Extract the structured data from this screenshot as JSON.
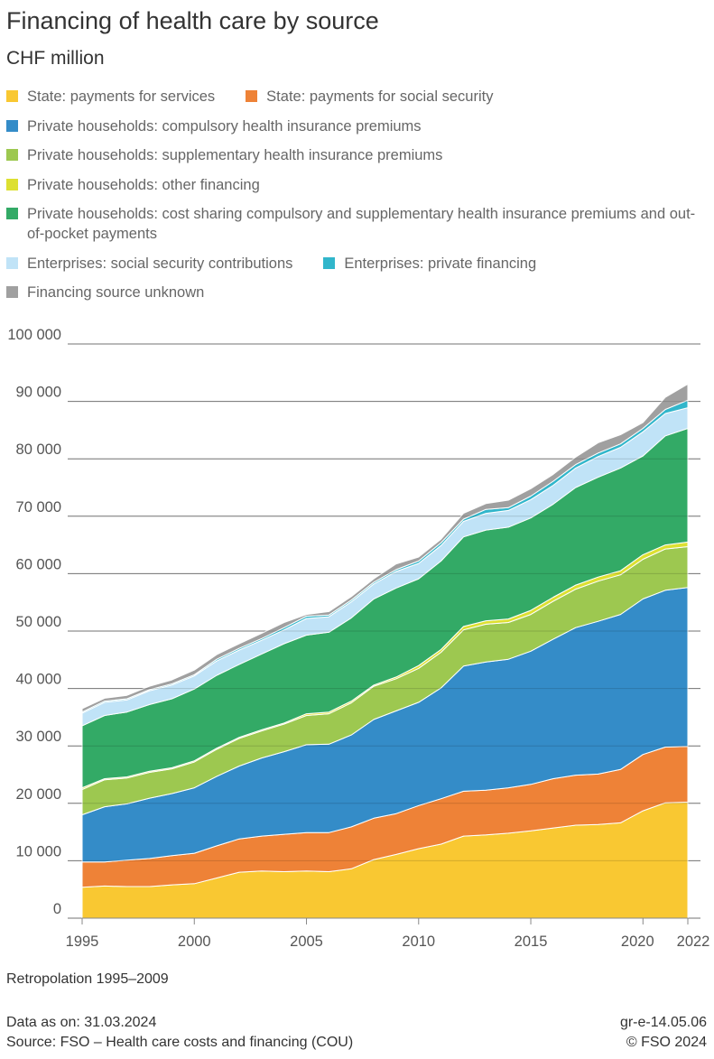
{
  "title": "Financing of health care by source",
  "subtitle": "CHF million",
  "note": "Retropolation 1995–2009",
  "footer": {
    "data_as_on": "Data as on: 31.03.2024",
    "source": "Source: FSO – Health care costs and financing (COU)",
    "code": "gr-e-14.05.06",
    "copyright": "© FSO 2024"
  },
  "chart_data": {
    "type": "area",
    "stacked": true,
    "title": "Financing of health care by source",
    "ylabel": "CHF million",
    "ylim": [
      0,
      100000
    ],
    "grid": true,
    "legend_position": "top",
    "yticks": [
      0,
      10000,
      20000,
      30000,
      40000,
      50000,
      60000,
      70000,
      80000,
      90000,
      100000
    ],
    "ytick_labels": [
      "0",
      "10 000",
      "20 000",
      "30 000",
      "40 000",
      "50 000",
      "60 000",
      "70 000",
      "80 000",
      "90 000",
      "100 000"
    ],
    "xticks": [
      1995,
      2000,
      2005,
      2010,
      2015,
      2020,
      2022
    ],
    "xtick_labels": [
      "1995",
      "2000",
      "2005",
      "2010",
      "2015",
      "2020",
      "2022"
    ],
    "x": [
      1995,
      1996,
      1997,
      1998,
      1999,
      2000,
      2001,
      2002,
      2003,
      2004,
      2005,
      2006,
      2007,
      2008,
      2009,
      2010,
      2011,
      2012,
      2013,
      2014,
      2015,
      2016,
      2017,
      2018,
      2019,
      2020,
      2021,
      2022
    ],
    "series": [
      {
        "name": "State: payments for services",
        "color": "#f9c832",
        "values": [
          5400,
          5600,
          5500,
          5500,
          5800,
          6000,
          7000,
          8000,
          8200,
          8100,
          8200,
          8100,
          8600,
          10200,
          11100,
          12100,
          12900,
          14300,
          14500,
          14800,
          15200,
          15700,
          16200,
          16300,
          16600,
          18700,
          20100,
          20200
        ]
      },
      {
        "name": "State: payments for social security",
        "color": "#ee8237",
        "values": [
          4400,
          4200,
          4600,
          4900,
          5100,
          5300,
          5600,
          5800,
          6100,
          6500,
          6700,
          6800,
          7300,
          7200,
          7100,
          7500,
          7900,
          7800,
          7800,
          7900,
          8100,
          8600,
          8700,
          8800,
          9300,
          9800,
          9700,
          9700
        ]
      },
      {
        "name": "Private households: compulsory health insurance premiums",
        "color": "#348cc8",
        "values": [
          8200,
          9600,
          9800,
          10500,
          10800,
          11400,
          12100,
          12700,
          13600,
          14400,
          15300,
          15400,
          16000,
          17200,
          17900,
          18000,
          19300,
          21800,
          22300,
          22400,
          23200,
          24300,
          25700,
          26600,
          27000,
          27100,
          27300,
          27700
        ]
      },
      {
        "name": "Private households: supplementary health insurance premiums",
        "color": "#9dc850",
        "values": [
          4400,
          4700,
          4500,
          4500,
          4300,
          4500,
          4700,
          4800,
          4700,
          4800,
          5100,
          5300,
          5600,
          5800,
          5600,
          5900,
          6200,
          6300,
          6600,
          6400,
          6400,
          6600,
          6700,
          7000,
          6900,
          6900,
          7200,
          7100
        ]
      },
      {
        "name": "Private households: other financing",
        "color": "#dde031",
        "values": [
          300,
          200,
          200,
          200,
          200,
          200,
          200,
          200,
          200,
          200,
          300,
          300,
          300,
          200,
          300,
          500,
          500,
          600,
          600,
          600,
          700,
          700,
          700,
          700,
          700,
          800,
          700,
          800
        ]
      },
      {
        "name": "Private households: cost sharing compulsory and supplementary health insurance premiums and out-of-pocket payments",
        "color": "#33aa66",
        "values": [
          10800,
          11000,
          11300,
          11600,
          12000,
          12500,
          12700,
          12700,
          13200,
          13800,
          13700,
          13900,
          14500,
          15000,
          15500,
          15100,
          15400,
          15600,
          15800,
          16000,
          16100,
          16200,
          17000,
          17400,
          17900,
          17200,
          19000,
          19800
        ]
      },
      {
        "name": "Enterprises: social security contributions",
        "color": "#c0e3f7",
        "values": [
          2200,
          2300,
          2100,
          2400,
          2400,
          2300,
          2500,
          2500,
          2400,
          2400,
          2900,
          2700,
          2800,
          2600,
          2900,
          2700,
          2700,
          2700,
          2900,
          2900,
          3200,
          3300,
          3400,
          3600,
          3600,
          4200,
          3900,
          3600
        ]
      },
      {
        "name": "Enterprises: private financing",
        "color": "#31b6cb",
        "values": [
          200,
          200,
          200,
          200,
          200,
          200,
          300,
          300,
          300,
          400,
          400,
          300,
          300,
          300,
          300,
          400,
          500,
          400,
          700,
          500,
          600,
          700,
          600,
          600,
          600,
          600,
          700,
          1300
        ]
      },
      {
        "name": "Financing source unknown",
        "color": "#a0a0a0",
        "values": [
          600,
          500,
          600,
          600,
          700,
          800,
          800,
          800,
          900,
          900,
          300,
          600,
          600,
          600,
          1000,
          700,
          600,
          1000,
          1000,
          1300,
          1300,
          1200,
          1300,
          1800,
          1600,
          1000,
          2100,
          2800
        ]
      }
    ]
  }
}
